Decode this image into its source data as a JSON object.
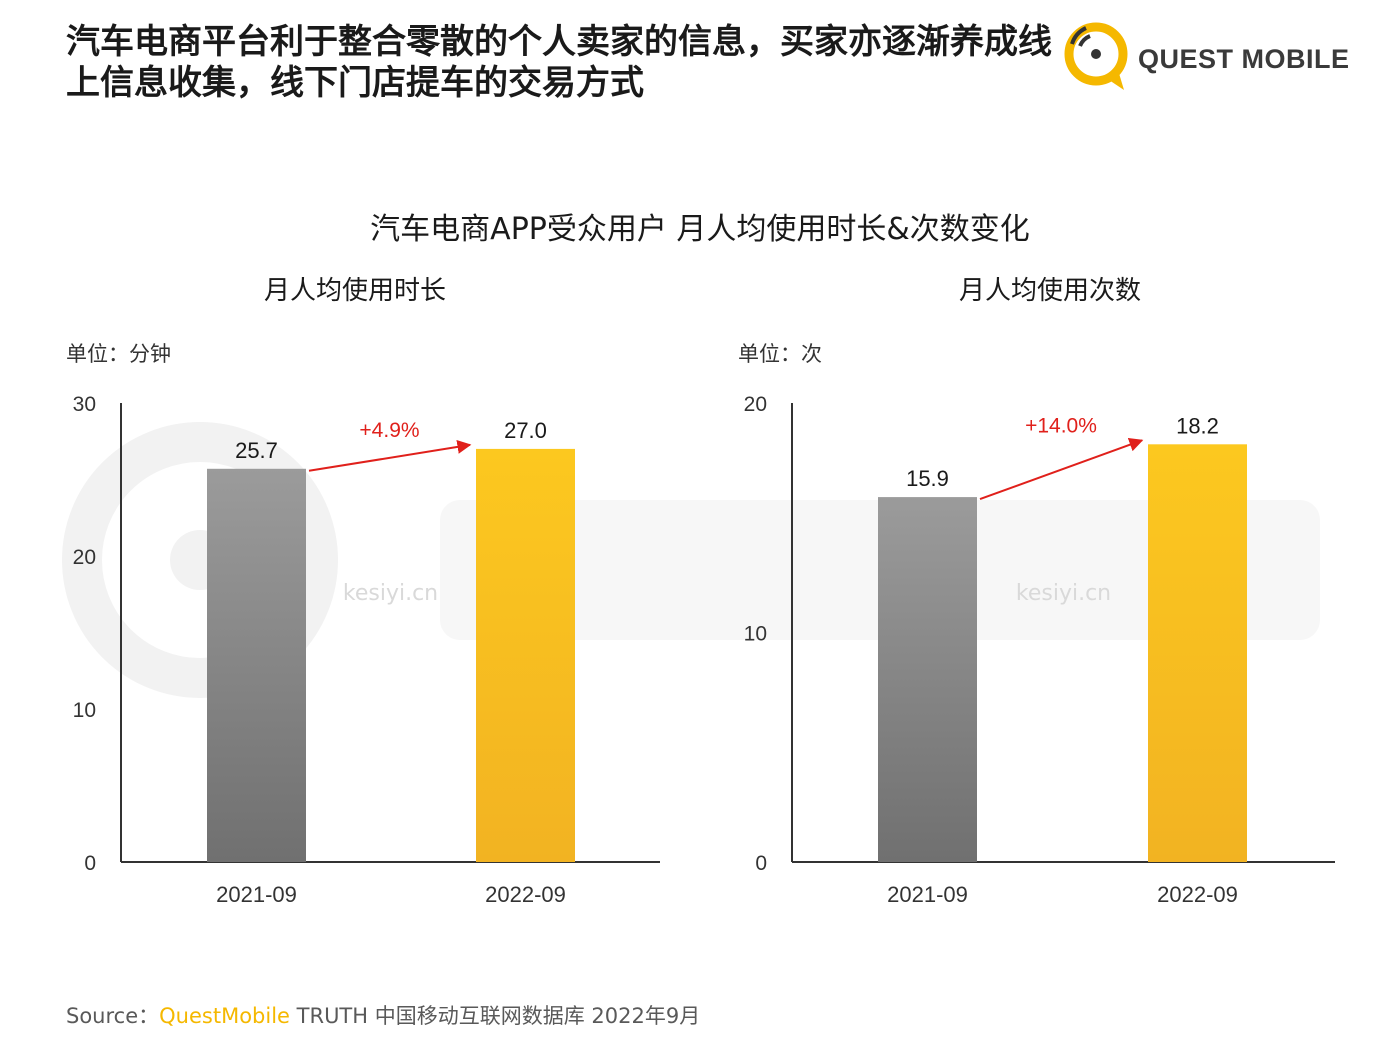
{
  "headline": "汽车电商平台利于整合零散的个人卖家的信息，买家亦逐渐养成线上信息收集，线下门店提车的交易方式",
  "logo": {
    "text": "QUEST MOBILE",
    "icon": "quest-mobile-logo-icon"
  },
  "watermark": {
    "text": "kesiyi.cn"
  },
  "main_title": "汽车电商APP受众用户 月人均使用时长&次数变化",
  "colors": {
    "bar_2021": "#8c8c8c",
    "bar_2022": "#f8c31c",
    "growth_arrow": "#e0201b",
    "accent": "#f5b800"
  },
  "chart_data": [
    {
      "type": "bar",
      "title": "月人均使用时长",
      "unit_label": "单位：分钟",
      "categories": [
        "2021-09",
        "2022-09"
      ],
      "values": [
        25.7,
        27.0
      ],
      "value_labels": [
        "25.7",
        "27.0"
      ],
      "ylim": [
        0,
        30
      ],
      "yticks": [
        0,
        10,
        20,
        30
      ],
      "growth_label": "+4.9%",
      "grid": false
    },
    {
      "type": "bar",
      "title": "月人均使用次数",
      "unit_label": "单位：次",
      "categories": [
        "2021-09",
        "2022-09"
      ],
      "values": [
        15.9,
        18.2
      ],
      "value_labels": [
        "15.9",
        "18.2"
      ],
      "ylim": [
        0,
        20
      ],
      "yticks": [
        0,
        10,
        20
      ],
      "growth_label": "+14.0%",
      "grid": false
    }
  ],
  "source": {
    "prefix": "Source：",
    "brand": "QuestMobile",
    "rest": " TRUTH 中国移动互联网数据库 2022年9月"
  }
}
